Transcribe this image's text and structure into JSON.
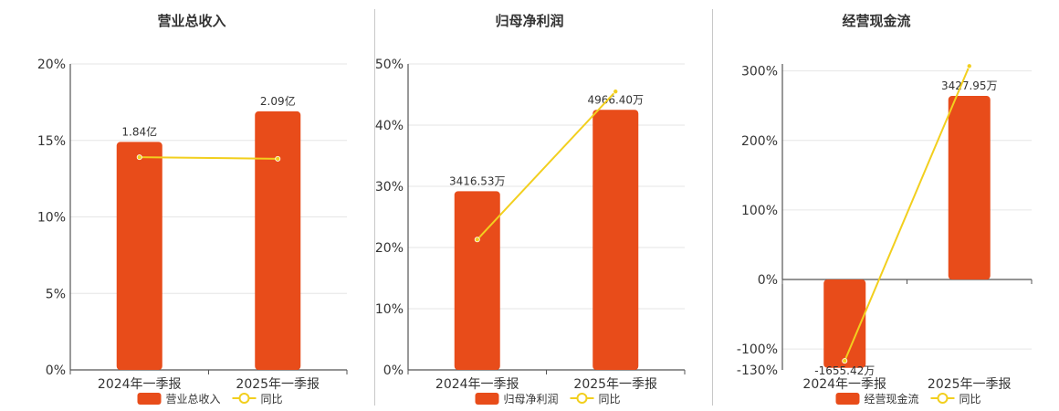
{
  "colors": {
    "bar": "#E84C1A",
    "line": "#F2CF1E",
    "grid": "#e6e6e6",
    "axis": "#333333",
    "title": "#333333",
    "text": "#333333"
  },
  "chart_data": [
    {
      "type": "bar",
      "title": "营业总收入",
      "categories": [
        "2024年一季报",
        "2025年一季报"
      ],
      "series": [
        {
          "name": "营业总收入",
          "type": "bar",
          "labels": [
            "1.84亿",
            "2.09亿"
          ],
          "values": [
            14.9,
            16.9
          ]
        },
        {
          "name": "同比",
          "type": "line",
          "values": [
            13.9,
            13.8
          ]
        }
      ],
      "ylim": [
        0,
        20
      ],
      "yticks": [
        0,
        5,
        10,
        15,
        20
      ],
      "ytick_labels": [
        "0%",
        "5%",
        "10%",
        "15%",
        "20%"
      ],
      "grid": true,
      "legend": "bottom"
    },
    {
      "type": "bar",
      "title": "归母净利润",
      "categories": [
        "2024年一季报",
        "2025年一季报"
      ],
      "series": [
        {
          "name": "归母净利润",
          "type": "bar",
          "labels": [
            "3416.53万",
            "4966.40万"
          ],
          "values": [
            29.2,
            42.5
          ]
        },
        {
          "name": "同比",
          "type": "line",
          "values": [
            21.3,
            45.5
          ]
        }
      ],
      "ylim": [
        0,
        50
      ],
      "yticks": [
        0,
        10,
        20,
        30,
        40,
        50
      ],
      "ytick_labels": [
        "0%",
        "10%",
        "20%",
        "30%",
        "40%",
        "50%"
      ],
      "grid": true,
      "legend": "bottom"
    },
    {
      "type": "bar",
      "title": "经营现金流",
      "categories": [
        "2024年一季报",
        "2025年一季报"
      ],
      "series": [
        {
          "name": "经营现金流",
          "type": "bar",
          "labels": [
            "-1655.42万",
            "3427.95万"
          ],
          "values": [
            -127,
            264
          ]
        },
        {
          "name": "同比",
          "type": "line",
          "values": [
            -117,
            307
          ]
        }
      ],
      "ylim": [
        -130,
        310
      ],
      "yticks": [
        -130,
        -100,
        0,
        100,
        200,
        300
      ],
      "ytick_labels": [
        "-130%",
        "-100%",
        "0%",
        "100%",
        "200%",
        "300%"
      ],
      "grid": true,
      "legend": "bottom"
    }
  ]
}
